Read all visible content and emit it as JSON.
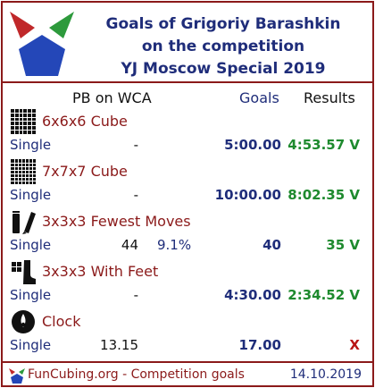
{
  "header": {
    "title_line1": "Goals of Grigoriy Barashkin",
    "title_line2": "on the competition",
    "title_line3": "YJ Moscow Special 2019"
  },
  "columns": {
    "pb": "PB on WCA",
    "goals": "Goals",
    "results": "Results"
  },
  "events": [
    {
      "icon": "6x6-cube-icon",
      "name": "6x6x6 Cube",
      "type": "Single",
      "pb": "-",
      "pct": "",
      "goal": "5:00.00",
      "result": "4:53.57 V",
      "status": "success"
    },
    {
      "icon": "7x7-cube-icon",
      "name": "7x7x7 Cube",
      "type": "Single",
      "pb": "-",
      "pct": "",
      "goal": "10:00.00",
      "result": "8:02.35 V",
      "status": "success"
    },
    {
      "icon": "fewest-moves-icon",
      "name": "3x3x3 Fewest Moves",
      "type": "Single",
      "pb": "44",
      "pct": "9.1%",
      "goal": "40",
      "result": "35 V",
      "status": "success"
    },
    {
      "icon": "with-feet-icon",
      "name": "3x3x3 With Feet",
      "type": "Single",
      "pb": "-",
      "pct": "",
      "goal": "4:30.00",
      "result": "2:34.52 V",
      "status": "success"
    },
    {
      "icon": "clock-icon",
      "name": "Clock",
      "type": "Single",
      "pb": "13.15",
      "pct": "",
      "goal": "17.00",
      "result": "X",
      "status": "fail"
    }
  ],
  "footer": {
    "text": "FunCubing.org - Competition goals",
    "date": "14.10.2019"
  },
  "colors": {
    "border": "#8b1a1a",
    "title": "#1f2d7a",
    "event_name": "#8b1a1a",
    "success": "#1e8a2e",
    "fail": "#b81414"
  }
}
